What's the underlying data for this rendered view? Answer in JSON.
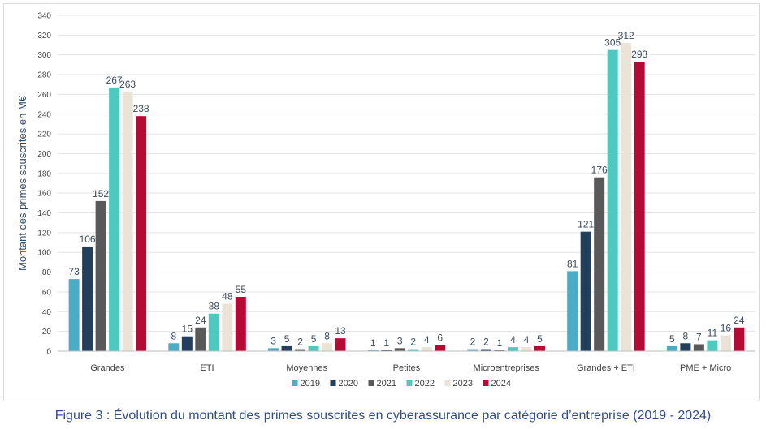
{
  "caption": "Figure 3 : Évolution du montant des primes souscrites en cyberassurance par catégorie d’entreprise (2019 - 2024)",
  "chart_data": {
    "type": "bar",
    "title": "",
    "xlabel": "",
    "ylabel": "Montant des primes souscrites en M€",
    "ylim": [
      0,
      340
    ],
    "ytick_step": 20,
    "grid": true,
    "legend_position": "bottom",
    "categories": [
      "Grandes",
      "ETI",
      "Moyennes",
      "Petites",
      "Microentreprises",
      "Grandes + ETI",
      "PME + Micro"
    ],
    "series": [
      {
        "name": "2019",
        "color": "#4bacc6",
        "values": [
          73,
          8,
          3,
          1,
          2,
          81,
          5
        ]
      },
      {
        "name": "2020",
        "color": "#243f5c",
        "values": [
          106,
          15,
          5,
          1,
          2,
          121,
          8
        ]
      },
      {
        "name": "2021",
        "color": "#595959",
        "values": [
          152,
          24,
          2,
          3,
          1,
          176,
          7
        ]
      },
      {
        "name": "2022",
        "color": "#4fc8bd",
        "values": [
          267,
          38,
          5,
          2,
          4,
          305,
          11
        ]
      },
      {
        "name": "2023",
        "color": "#ebe3d6",
        "values": [
          263,
          48,
          8,
          4,
          4,
          312,
          16
        ]
      },
      {
        "name": "2024",
        "color": "#b50a34",
        "values": [
          238,
          55,
          13,
          6,
          5,
          293,
          24
        ]
      }
    ]
  }
}
